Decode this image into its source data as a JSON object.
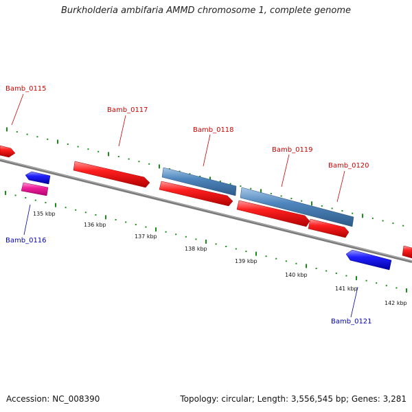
{
  "title": "Burkholderia ambifaria AMMD chromosome 1, complete genome",
  "footer": {
    "accession": "Accession: NC_008390",
    "summary": "Topology: circular; Length: 3,556,545 bp; Genes: 3,281"
  },
  "colors": {
    "forward_gene": "#ee1111",
    "reverse_gene": "#1010ee",
    "pink_gene": "#ee1a99",
    "steel_gene": "#4a7fb5",
    "backbone": "#8a8a8a",
    "dots": "#1a8a1a",
    "label_forward": "#cc0000",
    "label_reverse": "#0000bb"
  },
  "genes": [
    {
      "name": "Bamb_0115",
      "strand": "forward"
    },
    {
      "name": "Bamb_0116",
      "strand": "reverse"
    },
    {
      "name": "Bamb_0117",
      "strand": "forward"
    },
    {
      "name": "Bamb_0118",
      "strand": "forward"
    },
    {
      "name": "Bamb_0119",
      "strand": "forward"
    },
    {
      "name": "Bamb_0120",
      "strand": "forward"
    },
    {
      "name": "Bamb_0121",
      "strand": "reverse"
    }
  ],
  "ticks": [
    "135 kbp",
    "136 kbp",
    "137 kbp",
    "138 kbp",
    "139 kbp",
    "140 kbp",
    "141 kbp",
    "142 kbp"
  ]
}
